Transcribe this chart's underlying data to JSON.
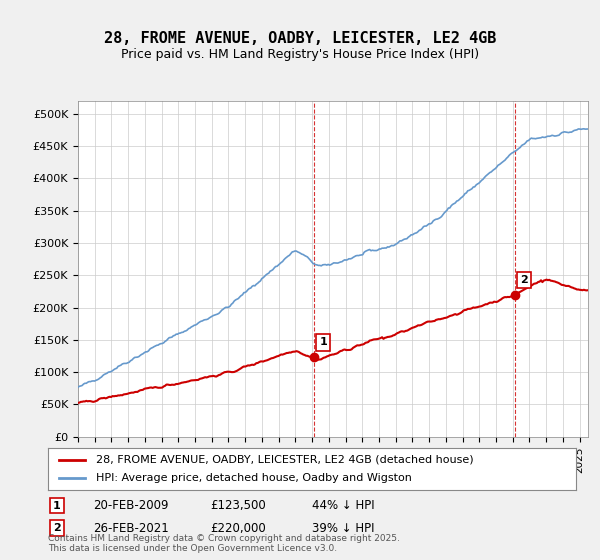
{
  "title": "28, FROME AVENUE, OADBY, LEICESTER, LE2 4GB",
  "subtitle": "Price paid vs. HM Land Registry's House Price Index (HPI)",
  "ylabel_ticks": [
    "£0",
    "£50K",
    "£100K",
    "£150K",
    "£200K",
    "£250K",
    "£300K",
    "£350K",
    "£400K",
    "£450K",
    "£500K"
  ],
  "ytick_values": [
    0,
    50000,
    100000,
    150000,
    200000,
    250000,
    300000,
    350000,
    400000,
    450000,
    500000
  ],
  "ylim": [
    0,
    520000
  ],
  "xlim_start": 1995.0,
  "xlim_end": 2025.5,
  "legend_line1": "28, FROME AVENUE, OADBY, LEICESTER, LE2 4GB (detached house)",
  "legend_line2": "HPI: Average price, detached house, Oadby and Wigston",
  "red_color": "#cc0000",
  "blue_color": "#6699cc",
  "marker1_date": 2009.13,
  "marker1_value": 123500,
  "marker1_label": "1",
  "marker1_text": "20-FEB-2009     £123,500     44% ↓ HPI",
  "marker2_date": 2021.15,
  "marker2_value": 220000,
  "marker2_label": "2",
  "marker2_text": "26-FEB-2021     £220,000     39% ↓ HPI",
  "footer": "Contains HM Land Registry data © Crown copyright and database right 2025.\nThis data is licensed under the Open Government Licence v3.0.",
  "background_color": "#f0f0f0",
  "plot_background": "#ffffff",
  "dashed_line_color": "#cc0000"
}
